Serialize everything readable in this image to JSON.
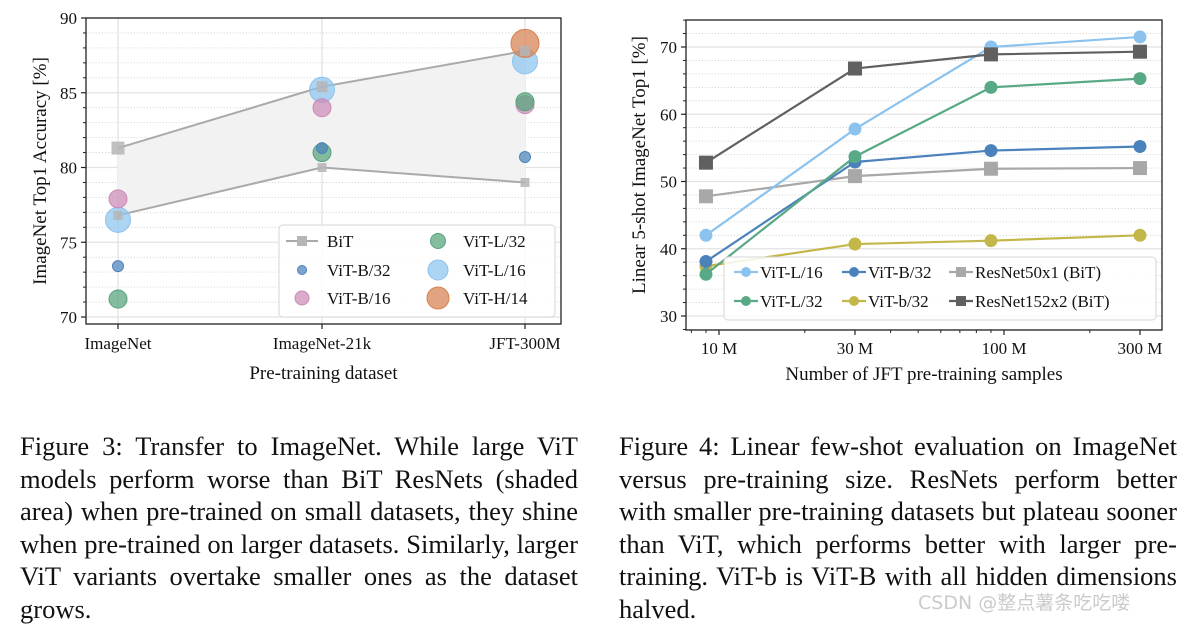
{
  "chart_data": [
    {
      "id": "figure3",
      "type": "scatter",
      "title": "",
      "xlabel": "Pre-training dataset",
      "ylabel": "ImageNet Top1 Accuracy [%]",
      "categories": [
        "ImageNet",
        "ImageNet-21k",
        "JFT-300M"
      ],
      "ylim": [
        70,
        90
      ],
      "yticks": [
        70,
        75,
        80,
        85,
        90
      ],
      "grid": true,
      "legend_position": "bottom-right",
      "shaded_band": {
        "name": "BiT",
        "upper": [
          81.3,
          85.4,
          87.8
        ],
        "lower": [
          76.8,
          80.0,
          79.0
        ],
        "color": "#aaaaaa"
      },
      "series": [
        {
          "name": "BiT",
          "marker": "square-line",
          "color": "#aaaaaa",
          "size_rank": 0
        },
        {
          "name": "ViT-B/32",
          "values": [
            73.4,
            81.3,
            80.7
          ],
          "color": "#4c82bb",
          "size_rank": 1
        },
        {
          "name": "ViT-B/16",
          "values": [
            77.9,
            84.0,
            84.2
          ],
          "color": "#cc8ab7",
          "size_rank": 2
        },
        {
          "name": "ViT-L/32",
          "values": [
            71.2,
            81.0,
            84.4
          ],
          "color": "#55a47b",
          "size_rank": 2
        },
        {
          "name": "ViT-L/16",
          "values": [
            76.5,
            85.2,
            87.1
          ],
          "color": "#8cc3ee",
          "size_rank": 3
        },
        {
          "name": "ViT-H/14",
          "values": [
            null,
            null,
            88.3
          ],
          "color": "#d7814f",
          "size_rank": 3
        }
      ]
    },
    {
      "id": "figure4",
      "type": "line",
      "title": "",
      "xlabel": "Number of JFT pre-training samples",
      "ylabel": "Linear 5-shot ImageNet Top1 [%]",
      "xscale": "log",
      "x": [
        9000000,
        30000000,
        90000000,
        300000000
      ],
      "xticks": [
        10000000,
        30000000,
        100000000,
        300000000
      ],
      "xtick_labels": [
        "10 M",
        "30 M",
        "100 M",
        "300 M"
      ],
      "xlim": [
        7800000,
        340000000
      ],
      "ylim": [
        27,
        74
      ],
      "yticks": [
        30,
        40,
        50,
        60,
        70
      ],
      "grid": true,
      "legend_position": "bottom-right",
      "series": [
        {
          "name": "ViT-L/16",
          "values": [
            42.0,
            57.8,
            70.0,
            71.5
          ],
          "color": "#8cc3ee",
          "marker": "circle"
        },
        {
          "name": "ViT-L/32",
          "values": [
            36.2,
            53.7,
            64.0,
            65.3
          ],
          "color": "#5aa986",
          "marker": "circle"
        },
        {
          "name": "ViT-B/32",
          "values": [
            38.1,
            52.9,
            54.6,
            55.2
          ],
          "color": "#4c82bb",
          "marker": "circle"
        },
        {
          "name": "ViT-b/32",
          "values": [
            37.4,
            40.7,
            41.2,
            42.0
          ],
          "color": "#c4b74a",
          "marker": "circle"
        },
        {
          "name": "ResNet50x1 (BiT)",
          "values": [
            47.8,
            50.8,
            51.9,
            52.0
          ],
          "color": "#a8a8a8",
          "marker": "square"
        },
        {
          "name": "ResNet152x2 (BiT)",
          "values": [
            52.8,
            66.8,
            68.9,
            69.3
          ],
          "color": "#606060",
          "marker": "square"
        }
      ]
    }
  ],
  "captions": {
    "figure3": "Figure 3:  Transfer to ImageNet.  While large ViT models perform worse than BiT ResNets (shaded area) when pre-trained on small datasets, they shine when pre-trained on larger datasets.  Similarly, larger ViT variants overtake smaller ones as the dataset grows.",
    "figure4": "Figure 4: Linear few-shot evaluation on ImageNet versus pre-training size.  ResNets perform better with smaller pre-training datasets but plateau sooner than ViT, which performs better with larger pre-training. ViT-b is ViT-B with all hidden dimensions halved."
  },
  "watermark": "CSDN @整点薯条吃吃喽"
}
